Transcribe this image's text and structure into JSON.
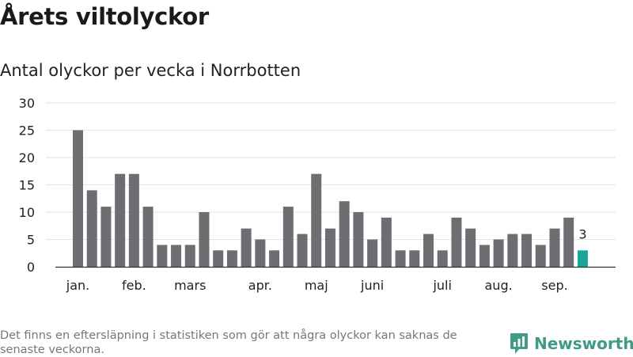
{
  "header": {
    "title": "Årets viltolyckor",
    "subtitle": "Antal olyckor per vecka i Norrbotten"
  },
  "footer": {
    "note": "Det finns en eftersläpning i statistiken som gör att några olyckor kan saknas de senaste veckorna.",
    "brand": "Newsworthy",
    "brand_icon": "newsworthy-logo-icon"
  },
  "colors": {
    "bar": "#6e6d72",
    "highlight": "#1aa596",
    "grid": "#e2e2e2",
    "axis": "#333333",
    "brand": "#3f9a86"
  },
  "chart_data": {
    "type": "bar",
    "title": "Årets viltolyckor",
    "subtitle": "Antal olyckor per vecka i Norrbotten",
    "xlabel": "",
    "ylabel": "",
    "ylim": [
      0,
      30
    ],
    "yticks": [
      0,
      5,
      10,
      15,
      20,
      25,
      30
    ],
    "grid": true,
    "values": [
      25,
      14,
      11,
      17,
      17,
      11,
      4,
      4,
      4,
      10,
      3,
      3,
      7,
      5,
      3,
      11,
      6,
      17,
      7,
      12,
      10,
      5,
      9,
      3,
      3,
      6,
      3,
      9,
      7,
      4,
      5,
      6,
      6,
      4,
      7,
      9,
      3
    ],
    "month_labels": [
      {
        "label": "jan.",
        "week": 1
      },
      {
        "label": "feb.",
        "week": 5
      },
      {
        "label": "mars",
        "week": 9
      },
      {
        "label": "apr.",
        "week": 14
      },
      {
        "label": "maj",
        "week": 18
      },
      {
        "label": "juni",
        "week": 22
      },
      {
        "label": "juli",
        "week": 27
      },
      {
        "label": "aug.",
        "week": 31
      },
      {
        "label": "sep.",
        "week": 35
      }
    ],
    "highlight_last": true,
    "last_value_label": "3"
  }
}
